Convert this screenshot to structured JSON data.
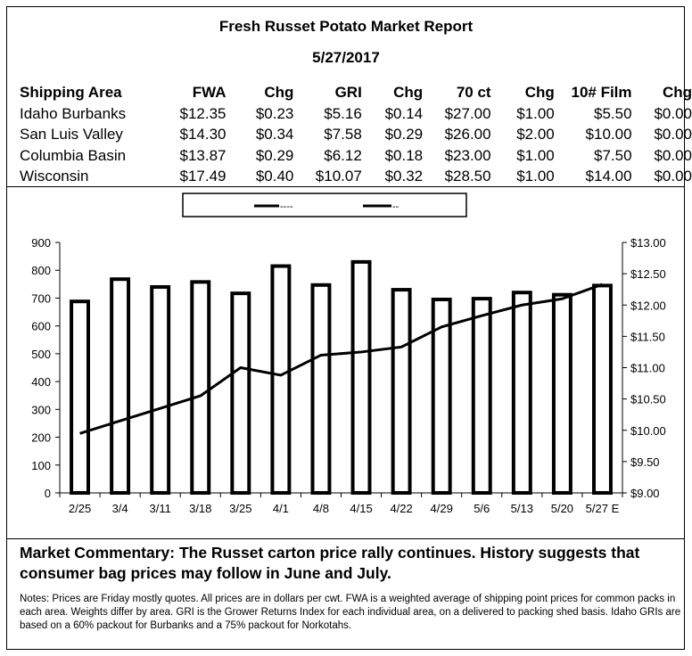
{
  "report": {
    "title": "Fresh Russet Potato Market Report",
    "date": "5/27/2017"
  },
  "table": {
    "headers": [
      "Shipping Area",
      "FWA",
      "Chg",
      "GRI",
      "Chg",
      "70 ct",
      "Chg",
      "10# Film",
      "Chg"
    ],
    "rows": [
      [
        "Idaho Burbanks",
        "$12.35",
        "$0.23",
        "$5.16",
        "$0.14",
        "$27.00",
        "$1.00",
        "$5.50",
        "$0.00"
      ],
      [
        "San Luis Valley",
        "$14.30",
        "$0.34",
        "$7.58",
        "$0.29",
        "$26.00",
        "$2.00",
        "$10.00",
        "$0.00"
      ],
      [
        "Columbia Basin",
        "$13.87",
        "$0.29",
        "$6.12",
        "$0.18",
        "$23.00",
        "$1.00",
        "$7.50",
        "$0.00"
      ],
      [
        "Wisconsin",
        "$17.49",
        "$0.40",
        "$10.07",
        "$0.32",
        "$28.50",
        "$1.00",
        "$14.00",
        "$0.00"
      ]
    ]
  },
  "chart_data": {
    "type": "bar",
    "categories": [
      "2/25",
      "3/4",
      "3/11",
      "3/18",
      "3/25",
      "4/1",
      "4/8",
      "4/15",
      "4/22",
      "4/29",
      "5/6",
      "5/13",
      "5/20",
      "5/27 E"
    ],
    "series": [
      {
        "name": "----",
        "type": "bar",
        "axis": "left",
        "values": [
          688,
          768,
          740,
          758,
          717,
          815,
          747,
          830,
          730,
          695,
          698,
          720,
          712,
          745
        ]
      },
      {
        "name": "--",
        "type": "line",
        "axis": "right",
        "values": [
          9.95,
          10.15,
          10.35,
          10.55,
          11.0,
          10.88,
          11.2,
          11.25,
          11.33,
          11.65,
          11.83,
          12.0,
          12.1,
          12.33
        ]
      }
    ],
    "y_left": {
      "min": 0,
      "max": 900,
      "ticks": [
        0,
        100,
        200,
        300,
        400,
        500,
        600,
        700,
        800,
        900
      ]
    },
    "y_right": {
      "min": 9,
      "max": 13,
      "ticks": [
        "$9.00",
        "$9.50",
        "$10.00",
        "$10.50",
        "$11.00",
        "$11.50",
        "$12.00",
        "$12.50",
        "$13.00"
      ]
    },
    "legend_placement": "top-center",
    "grid": false
  },
  "commentary": "Market Commentary: The Russet carton price rally continues. History suggests that consumer bag prices may follow in June and July.",
  "notes": "Notes: Prices are Friday mostly quotes. All prices are in dollars per cwt. FWA is a weighted average of shipping point prices for  common packs in each area. Weights differ by area. GRI is the Grower Returns Index for each individual area, on a delivered to packing shed basis. Idaho GRIs are based on a 60% packout for Burbanks and a 75% packout for Norkotahs."
}
